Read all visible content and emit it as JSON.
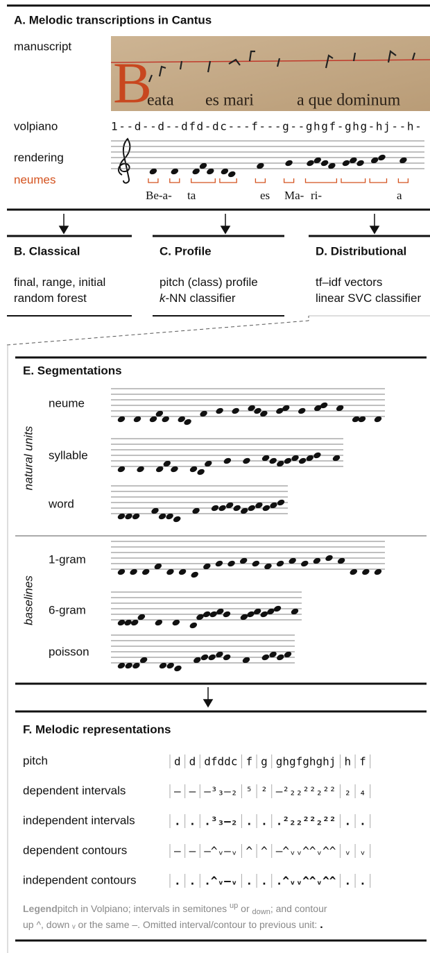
{
  "panel_a": {
    "title": "A.  Melodic transcriptions in Cantus",
    "labels": {
      "manuscript": "manuscript",
      "volpiano": "volpiano",
      "rendering": "rendering",
      "neumes": "neumes"
    },
    "manuscript_text": [
      "B",
      "eata",
      "es mari",
      "a que dominum"
    ],
    "volpiano": "1--d--d--dfd-dc---f---g--ghgf-ghg-hj--h-",
    "lyrics": [
      "Be-a-",
      "ta",
      "es",
      "Ma-",
      "ri-",
      "a"
    ]
  },
  "panels": [
    {
      "title": "B.  Classical",
      "lines": [
        [
          "final, range, initial"
        ],
        [
          "random forest"
        ]
      ]
    },
    {
      "title": "C.  Profile",
      "lines": [
        [
          "pitch (class) profile"
        ],
        [
          "k",
          "-NN classifier"
        ]
      ]
    },
    {
      "title": "D.  Distributional",
      "lines": [
        [
          "tf–idf vectors"
        ],
        [
          "linear SVC classifier"
        ]
      ]
    }
  ],
  "segmentations": {
    "title": "E.  Segmentations",
    "groups": [
      {
        "label": "natural units",
        "rows": [
          "neume",
          "syllable",
          "word"
        ]
      },
      {
        "label": "baselines",
        "rows": [
          "1-gram",
          "6-gram",
          "poisson"
        ]
      }
    ]
  },
  "representations": {
    "title": "F.  Melodic representations",
    "rows": [
      {
        "label": "pitch",
        "cells": [
          "d",
          "d",
          "dfddc",
          "f",
          "g",
          "ghgfghghj",
          "h",
          "f"
        ]
      },
      {
        "label": "dependent intervals",
        "cells": [
          "–",
          "–",
          "–³₃–₂",
          "⁵",
          "²",
          "–²₂₂²²₂²²",
          "₂",
          "₄"
        ]
      },
      {
        "label": "independent intervals",
        "cells": [
          ".",
          ".",
          ".³₃–₂",
          ".",
          ".",
          ".²₂₂²²₂²²",
          ".",
          "."
        ]
      },
      {
        "label": "dependent contours",
        "cells": [
          "–",
          "–",
          "–^ᵥ–ᵥ",
          "^",
          "^",
          "–^ᵥᵥ^^ᵥ^^",
          "ᵥ",
          "ᵥ"
        ]
      },
      {
        "label": "independent contours",
        "cells": [
          ".",
          ".",
          ".^ᵥ–ᵥ",
          ".",
          ".",
          ".^ᵥᵥ^^ᵥ^^",
          ".",
          "."
        ]
      }
    ]
  },
  "legend": {
    "label": "Legend",
    "parts": [
      "pitch in Volpiano; intervals in semitones ",
      "up",
      " or ",
      "down",
      "; and contour",
      "up ^, down ",
      "ᵥ",
      " or the same –. Omitted interval/contour to previous unit: ",
      "."
    ]
  }
}
